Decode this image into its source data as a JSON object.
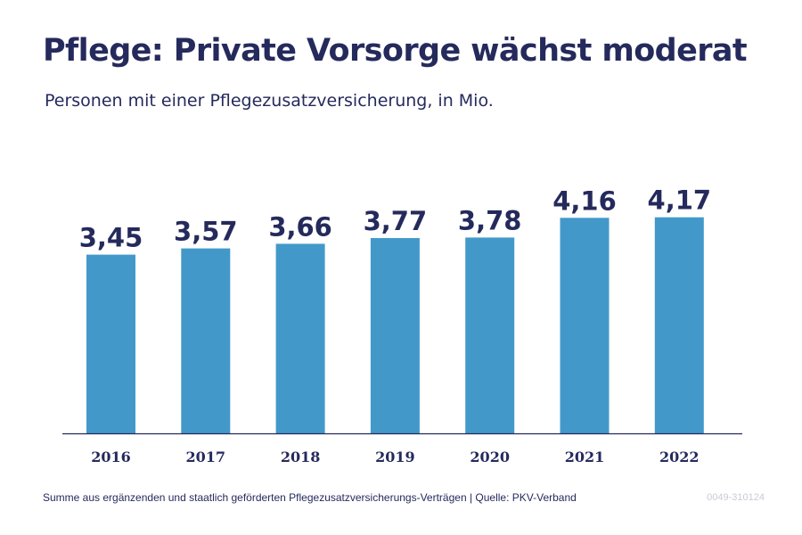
{
  "header": {
    "title": "Pflege: Private Vorsorge wächst moderat",
    "subtitle": "Personen mit einer Pflegezusatzversicherung, in Mio."
  },
  "chart_data": {
    "type": "bar",
    "title": "Pflege: Private Vorsorge wächst moderat",
    "subtitle": "Personen mit einer Pflegezusatzversicherung, in Mio.",
    "categories": [
      "2016",
      "2017",
      "2018",
      "2019",
      "2020",
      "2021",
      "2022"
    ],
    "values": [
      3.45,
      3.57,
      3.66,
      3.77,
      3.78,
      4.16,
      4.17
    ],
    "value_labels": [
      "3,45",
      "3,57",
      "3,66",
      "3,77",
      "3,78",
      "4,16",
      "4,17"
    ],
    "xlabel": "",
    "ylabel": "",
    "ylim": [
      0,
      4.9
    ],
    "grid": false,
    "legend": "none",
    "bar_color": "#4299c9",
    "text_color": "#252a5c",
    "baseline_color": "#252a5c"
  },
  "footer": {
    "note": "Summe aus ergänzenden und staatlich geförderten Pflegezusatzversicherungs-Verträgen  |  Quelle: PKV-Verband",
    "code": "0049-310124"
  }
}
